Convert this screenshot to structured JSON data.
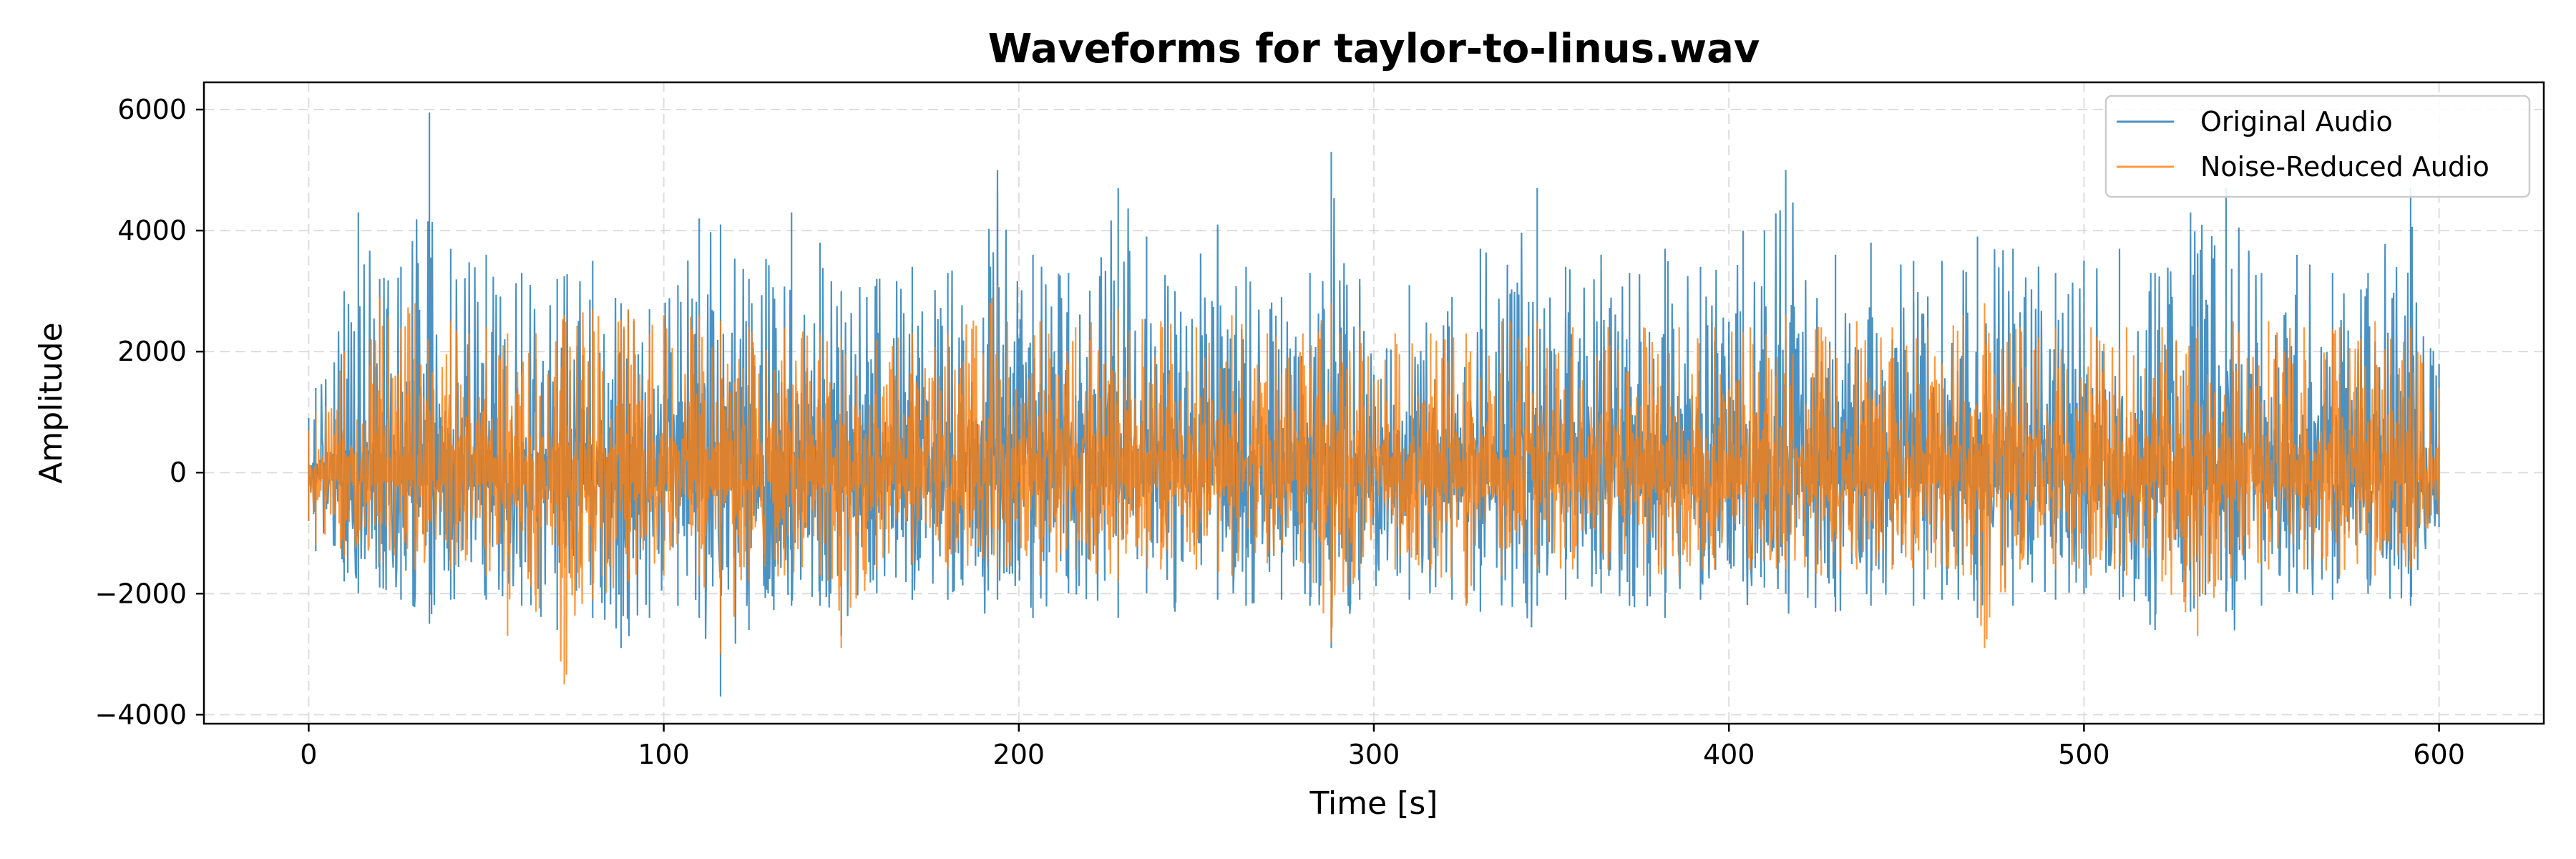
{
  "chart_data": {
    "type": "line",
    "title": "Waveforms for taylor-to-linus.wav",
    "xlabel": "Time [s]",
    "ylabel": "Amplitude",
    "xlim": [
      -29.5,
      629.5
    ],
    "ylim": [
      -4150,
      6450
    ],
    "xticks": [
      0,
      100,
      200,
      300,
      400,
      500,
      600
    ],
    "xtick_labels": [
      "0",
      "100",
      "200",
      "300",
      "400",
      "500",
      "600"
    ],
    "yticks": [
      -4000,
      -2000,
      0,
      2000,
      4000,
      6000
    ],
    "ytick_labels": [
      "−4000",
      "−2000",
      "0",
      "2000",
      "4000",
      "6000"
    ],
    "grid": true,
    "legend_position": "top-right",
    "x_range": [
      0,
      600
    ],
    "series": [
      {
        "name": "Original Audio",
        "color": "#1f77b4",
        "envelope": {
          "x": [
            0,
            2,
            10,
            14,
            20,
            26,
            34,
            40,
            50,
            60,
            70,
            80,
            88,
            96,
            104,
            110,
            116,
            124,
            136,
            144,
            150,
            160,
            170,
            180,
            194,
            204,
            214,
            228,
            236,
            244,
            256,
            264,
            274,
            282,
            288,
            296,
            310,
            322,
            330,
            346,
            354,
            364,
            372,
            382,
            392,
            404,
            410,
            416,
            430,
            440,
            452,
            460,
            470,
            480,
            492,
            500,
            510,
            520,
            530,
            540,
            550,
            560,
            570,
            580,
            592,
            600
          ],
          "upper": [
            900,
            1400,
            3000,
            4300,
            3200,
            3400,
            5950,
            3700,
            3600,
            3300,
            3200,
            3500,
            2800,
            2700,
            3100,
            4200,
            4100,
            3200,
            4300,
            3800,
            3000,
            3200,
            3400,
            3300,
            5000,
            3600,
            3300,
            4700,
            3900,
            3000,
            4100,
            3400,
            2900,
            3300,
            5300,
            3200,
            3100,
            2900,
            3700,
            4700,
            3400,
            3600,
            3300,
            3700,
            3400,
            4000,
            4000,
            5000,
            3600,
            3800,
            3500,
            3500,
            3900,
            3700,
            3300,
            3500,
            3700,
            3300,
            4300,
            4700,
            3300,
            3600,
            3300,
            3300,
            4700,
            1800
          ],
          "lower": [
            -800,
            -1300,
            -1800,
            -2000,
            -1900,
            -2100,
            -2500,
            -2100,
            -2100,
            -2200,
            -2600,
            -2400,
            -2900,
            -2400,
            -2200,
            -2400,
            -3700,
            -2600,
            -2200,
            -2200,
            -2700,
            -2000,
            -2100,
            -2100,
            -2100,
            -2400,
            -2000,
            -2400,
            -2000,
            -2300,
            -2100,
            -2200,
            -2100,
            -2200,
            -2900,
            -2100,
            -2100,
            -2100,
            -2300,
            -2200,
            -2100,
            -2000,
            -2200,
            -2400,
            -2100,
            -1800,
            -1900,
            -2000,
            -2300,
            -2200,
            -2200,
            -2100,
            -2400,
            -2200,
            -2100,
            -2000,
            -2100,
            -2600,
            -2300,
            -2300,
            -2200,
            -2000,
            -2100,
            -2000,
            -2200,
            -900
          ]
        }
      },
      {
        "name": "Noise-Reduced Audio",
        "color": "#ff7f0e",
        "envelope": {
          "x": [
            0,
            2,
            10,
            20,
            30,
            40,
            50,
            56,
            64,
            72,
            80,
            90,
            100,
            110,
            116,
            124,
            134,
            144,
            150,
            160,
            170,
            180,
            194,
            206,
            216,
            228,
            240,
            250,
            260,
            270,
            280,
            288,
            296,
            306,
            316,
            326,
            336,
            346,
            356,
            366,
            376,
            386,
            396,
            406,
            416,
            426,
            436,
            446,
            456,
            466,
            472,
            482,
            492,
            502,
            512,
            522,
            532,
            542,
            552,
            562,
            572,
            582,
            592,
            600
          ],
          "upper": [
            700,
            1000,
            2000,
            2900,
            2800,
            2500,
            2400,
            2300,
            2300,
            2600,
            2700,
            2700,
            2600,
            2600,
            2500,
            2400,
            2400,
            2300,
            2200,
            2200,
            2300,
            2300,
            3100,
            2500,
            2400,
            2700,
            2500,
            2400,
            2600,
            2300,
            2300,
            2800,
            2400,
            2300,
            2300,
            2300,
            2500,
            2500,
            2400,
            2400,
            2400,
            2400,
            2400,
            2400,
            2600,
            2400,
            2500,
            2400,
            2400,
            2600,
            2800,
            2400,
            2400,
            2400,
            2400,
            2400,
            2400,
            2500,
            2500,
            2400,
            2400,
            2500,
            2400,
            1400
          ],
          "lower": [
            -800,
            -1200,
            -1400,
            -1500,
            -1600,
            -1600,
            -1700,
            -2700,
            -2300,
            -3500,
            -2100,
            -1800,
            -1700,
            -1700,
            -3000,
            -1800,
            -1700,
            -1700,
            -2900,
            -1600,
            -1500,
            -1600,
            -1600,
            -1700,
            -1600,
            -1800,
            -1600,
            -1600,
            -1700,
            -1500,
            -1500,
            -2800,
            -1600,
            -1600,
            -1600,
            -2200,
            -1700,
            -1600,
            -1600,
            -1600,
            -1700,
            -1700,
            -1600,
            -1600,
            -1600,
            -1700,
            -1600,
            -1600,
            -1600,
            -1700,
            -2900,
            -1600,
            -1600,
            -1700,
            -1700,
            -1800,
            -2700,
            -1700,
            -1600,
            -1600,
            -1700,
            -1700,
            -1600,
            -700
          ]
        }
      }
    ]
  }
}
